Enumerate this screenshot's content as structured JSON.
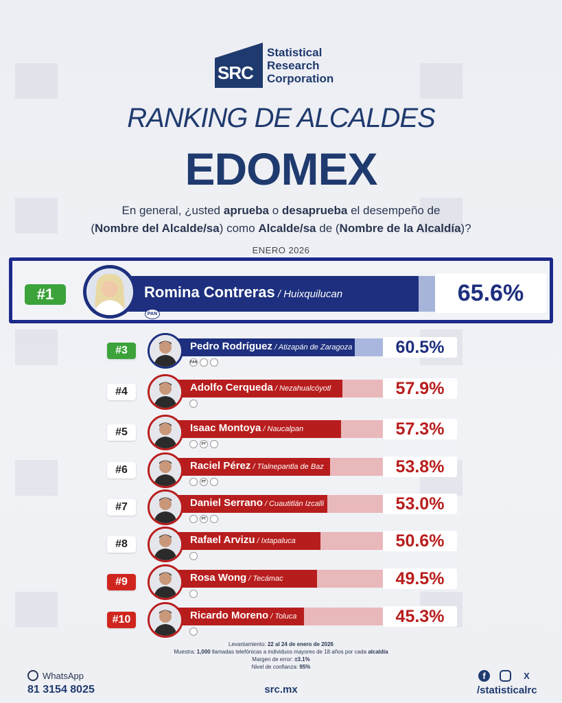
{
  "brand": {
    "logo_abbr": "SRC",
    "logo_name_1": "Statistical",
    "logo_name_2": "Research",
    "logo_name_3": "Corporation"
  },
  "title": {
    "line1": "RANKING DE ALCALDES",
    "line2": "EDOMEX"
  },
  "question": {
    "p1": "En general, ¿usted ",
    "b1": "aprueba",
    "p2": " o ",
    "b2": "desaprueba",
    "p3": " el desempeño de",
    "p4": "(",
    "b3": "Nombre del Alcalde/sa",
    "p5": ") como ",
    "b4": "Alcalde/sa",
    "p6": " de (",
    "b5": "Nombre de la Alcaldía",
    "p7": ")?"
  },
  "month": "ENERO 2026",
  "featured": {
    "rank": "#1",
    "name": "Romina Contreras",
    "municipality": " / Huixquilucan",
    "approval": "65.6%",
    "party": "PAN"
  },
  "rows": [
    {
      "rank": "#3",
      "name": "Pedro Rodríguez",
      "municipality": " / Atizapán de Zaragoza",
      "approval": "60.5%",
      "value": 60.5
    },
    {
      "rank": "#4",
      "name": "Adolfo Cerqueda",
      "municipality": " / Nezahualcóyotl",
      "approval": "57.9%",
      "value": 57.9
    },
    {
      "rank": "#5",
      "name": "Isaac Montoya",
      "municipality": " / Naucalpan",
      "approval": "57.3%",
      "value": 57.3
    },
    {
      "rank": "#6",
      "name": "Raciel Pérez",
      "municipality": " / Tlalnepantla de Baz",
      "approval": "53.8%",
      "value": 53.8
    },
    {
      "rank": "#7",
      "name": "Daniel Serrano",
      "municipality": " / Cuautitlán Izcalli",
      "approval": "53.0%",
      "value": 53.0
    },
    {
      "rank": "#8",
      "name": "Rafael Arvizu",
      "municipality": " / Ixtapaluca",
      "approval": "50.6%",
      "value": 50.6
    },
    {
      "rank": "#9",
      "name": "Rosa Wong",
      "municipality": " / Tecámac",
      "approval": "49.5%",
      "value": 49.5
    },
    {
      "rank": "#10",
      "name": "Ricardo Moreno",
      "municipality": " / Toluca",
      "approval": "45.3%",
      "value": 45.3
    }
  ],
  "party_labels": {
    "pt": "PT",
    "pan": "PAN"
  },
  "methodology": {
    "lev_label": "Levantamiento: ",
    "lev_value": "22 al 24 de enero de 2026",
    "sample_label": "Muestra: ",
    "sample_value": "1,000",
    "sample_text": " llamadas telefónicas a individuos mayores de 18 años por cada ",
    "sample_unit": "alcaldía",
    "error_label": "Margen de error: ",
    "error_value": "±3.1%",
    "conf_label": "Nivel de confianza: ",
    "conf_value": "95%"
  },
  "footer": {
    "whatsapp_label": "WhatsApp",
    "whatsapp_number": "81 3154 8025",
    "site": "src.mx",
    "x_glyph": "X",
    "social_handle": "/statisticalrc"
  }
}
